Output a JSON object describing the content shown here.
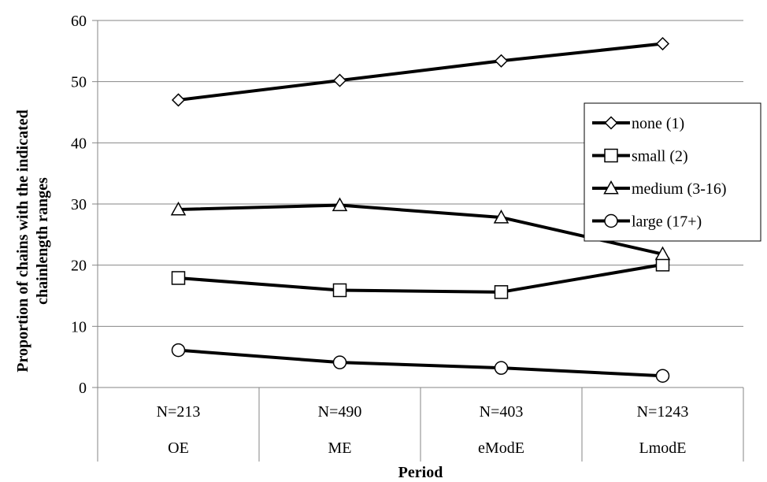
{
  "chart_data": {
    "type": "line",
    "ylabel": "Proportion of chains with the indicated chainlength ranges",
    "ylabel_lines": [
      "Proportion of chains with the indicated",
      "chainlength ranges"
    ],
    "xlabel": "Period",
    "ylim": [
      0,
      60
    ],
    "yticks": [
      0,
      10,
      20,
      30,
      40,
      50,
      60
    ],
    "grid": true,
    "legend_position": "right",
    "categories": [
      "OE",
      "ME",
      "eModE",
      "LmodE"
    ],
    "sample_sizes": [
      "N=213",
      "N=490",
      "N=403",
      "N=1243"
    ],
    "series": [
      {
        "name": "none (1)",
        "marker": "diamond",
        "values": [
          47.0,
          50.2,
          53.4,
          56.2
        ]
      },
      {
        "name": "small (2)",
        "marker": "square",
        "values": [
          17.9,
          15.9,
          15.6,
          20.1
        ]
      },
      {
        "name": "medium (3-16)",
        "marker": "triangle",
        "values": [
          29.1,
          29.8,
          27.8,
          21.8
        ]
      },
      {
        "name": "large (17+)",
        "marker": "circle",
        "values": [
          6.1,
          4.1,
          3.2,
          1.9
        ]
      }
    ],
    "colors": {
      "line": "#000000",
      "grid": "#868686",
      "marker_fill": "#ffffff"
    }
  }
}
